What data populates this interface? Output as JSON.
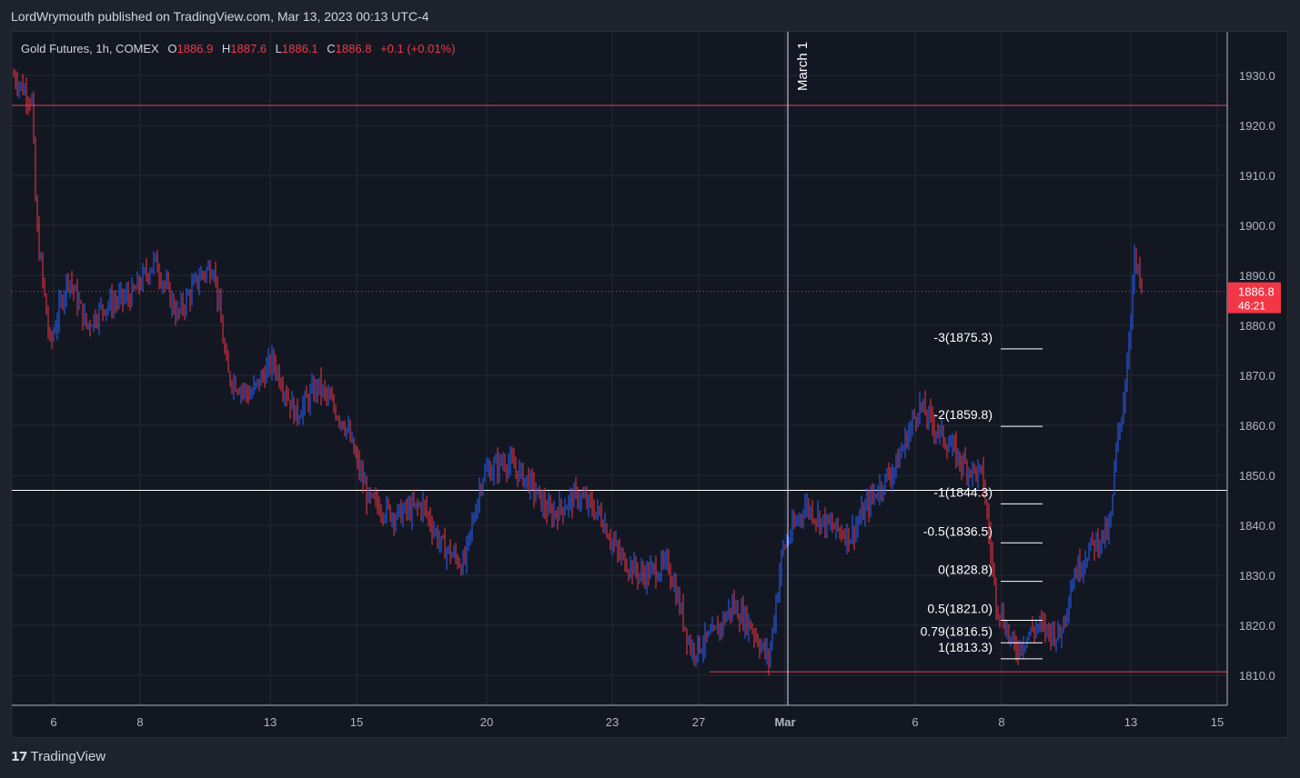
{
  "header": {
    "published_text": "LordWrymouth published on TradingView.com, Mar 13, 2023 00:13 UTC-4"
  },
  "legend": {
    "symbol": "Gold Futures, 1h, COMEX",
    "open_label": "O",
    "open": "1886.9",
    "high_label": "H",
    "high": "1887.6",
    "low_label": "L",
    "low": "1886.1",
    "close_label": "C",
    "close": "1886.8",
    "change": "+0.1 (+0.01%)"
  },
  "footer": {
    "brand": "TradingView"
  },
  "colors": {
    "up": "#2962ff",
    "down": "#f23645",
    "background": "#131722",
    "grid": "#242837",
    "resistance": "#e0425f",
    "support": "#ffffff",
    "price_badge": "#f23645"
  },
  "price_badge": {
    "price": "1886.8",
    "countdown": "46:21"
  },
  "chart_data": {
    "type": "candlestick",
    "yticks": [
      1810,
      1820,
      1830,
      1840,
      1850,
      1860,
      1870,
      1880,
      1890,
      1900,
      1910,
      1920,
      1930
    ],
    "ylim": [
      1804,
      1937
    ],
    "xticks": [
      "6",
      "8",
      "13",
      "15",
      "20",
      "23",
      "27",
      "Mar",
      "6",
      "8",
      "13",
      "15"
    ],
    "annotations": {
      "vertical_line_label": "March 1",
      "resistance_level": 1924,
      "support_level": 1847,
      "low_level": 1810.7
    },
    "fib_levels": [
      {
        "label": "-3(1875.3)",
        "value": 1875.3
      },
      {
        "label": "-2(1859.8)",
        "value": 1859.8
      },
      {
        "label": "-1(1844.3)",
        "value": 1844.3
      },
      {
        "label": "-0.5(1836.5)",
        "value": 1836.5
      },
      {
        "label": "0(1828.8)",
        "value": 1828.8
      },
      {
        "label": "0.5(1821.0)",
        "value": 1821.0
      },
      {
        "label": "0.79(1816.5)",
        "value": 1816.5
      },
      {
        "label": "1(1813.3)",
        "value": 1813.3
      }
    ],
    "current_price": 1886.8,
    "price_path": [
      [
        0,
        1930
      ],
      [
        20,
        1925
      ],
      [
        25,
        1900
      ],
      [
        40,
        1876
      ],
      [
        60,
        1890
      ],
      [
        80,
        1880
      ],
      [
        100,
        1884
      ],
      [
        130,
        1886
      ],
      [
        155,
        1893
      ],
      [
        180,
        1882
      ],
      [
        205,
        1890
      ],
      [
        220,
        1892
      ],
      [
        235,
        1870
      ],
      [
        260,
        1866
      ],
      [
        285,
        1873
      ],
      [
        310,
        1862
      ],
      [
        335,
        1868
      ],
      [
        365,
        1860
      ],
      [
        390,
        1845
      ],
      [
        420,
        1842
      ],
      [
        450,
        1844
      ],
      [
        470,
        1836
      ],
      [
        495,
        1832
      ],
      [
        515,
        1850
      ],
      [
        540,
        1853
      ],
      [
        565,
        1849
      ],
      [
        590,
        1842
      ],
      [
        620,
        1846
      ],
      [
        645,
        1842
      ],
      [
        665,
        1834
      ],
      [
        690,
        1830
      ],
      [
        720,
        1832
      ],
      [
        745,
        1815
      ],
      [
        770,
        1818
      ],
      [
        790,
        1824
      ],
      [
        810,
        1820
      ],
      [
        830,
        1813
      ],
      [
        845,
        1835
      ],
      [
        870,
        1844
      ],
      [
        895,
        1840
      ],
      [
        920,
        1838
      ],
      [
        945,
        1846
      ],
      [
        970,
        1852
      ],
      [
        995,
        1864
      ],
      [
        1020,
        1858
      ],
      [
        1045,
        1852
      ],
      [
        1065,
        1850
      ],
      [
        1080,
        1825
      ],
      [
        1100,
        1815
      ],
      [
        1125,
        1820
      ],
      [
        1150,
        1818
      ],
      [
        1165,
        1830
      ],
      [
        1185,
        1836
      ],
      [
        1205,
        1839
      ],
      [
        1212,
        1855
      ],
      [
        1222,
        1868
      ],
      [
        1232,
        1893
      ],
      [
        1240,
        1887
      ]
    ]
  }
}
